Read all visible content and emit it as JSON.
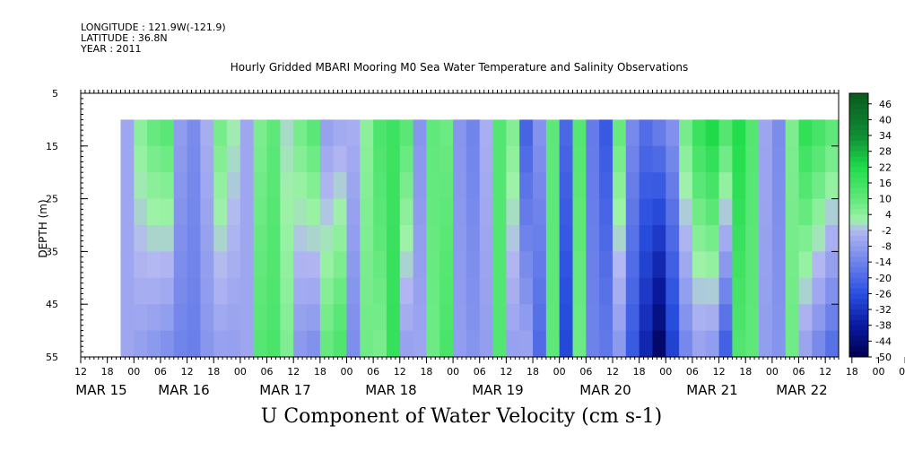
{
  "header": {
    "longitude": "LONGITUDE : 121.9W(-121.9)",
    "latitude": "LATITUDE : 36.8N",
    "year": "YEAR : 2011"
  },
  "chart_data": {
    "type": "heatmap",
    "title": "Hourly Gridded MBARI Mooring M0 Sea Water Temperature and Salinity Observations",
    "ylabel": "DEPTH (m)",
    "xlabel": "U Component of Water Velocity (cm s-1)",
    "y_reversed": true,
    "ylim": [
      5,
      55
    ],
    "y_ticks": [
      "5",
      "15",
      "25",
      "35",
      "45",
      "55"
    ],
    "xlim": [
      "2011-03-15 12:00",
      "2011-03-22 15:00"
    ],
    "x_hour_ticks": [
      "12",
      "18",
      "00",
      "06",
      "12",
      "18",
      "00",
      "06",
      "12",
      "18",
      "00",
      "06",
      "12",
      "18",
      "00",
      "06",
      "12",
      "18",
      "00",
      "06",
      "12",
      "18",
      "00",
      "06",
      "12",
      "18",
      "00",
      "06",
      "12",
      "18",
      "00",
      "06",
      "12"
    ],
    "x_date_labels": [
      "MAR 15",
      "MAR 16",
      "MAR 17",
      "MAR 18",
      "MAR 19",
      "MAR 20",
      "MAR 21",
      "MAR 22"
    ],
    "data_range": {
      "depth": [
        10,
        55
      ],
      "time_start": "2011-03-15 21:00",
      "time_end": "2011-03-22 15:00"
    },
    "colorbar": {
      "labels": [
        "46",
        "40",
        "34",
        "28",
        "22",
        "16",
        "10",
        "4",
        "-2",
        "-8",
        "-14",
        "-20",
        "-26",
        "-32",
        "-38",
        "-44",
        "-50"
      ],
      "min": -50,
      "max": 50,
      "colors": {
        "dark_blue": "#000066",
        "blue": "#2a4fe0",
        "light_blue": "#b4b8f2",
        "light_green": "#9ef2a8",
        "green": "#1fdc4a",
        "dark_green": "#0a5a1e"
      }
    },
    "columns_u_cm_s": [
      {
        "time": "2011-03-15 21:00",
        "top": -6,
        "bottom": -6
      },
      {
        "time": "2011-03-16 00:00",
        "top": 5,
        "bottom": -8
      },
      {
        "time": "2011-03-16 03:00",
        "top": 10,
        "bottom": -10
      },
      {
        "time": "2011-03-16 06:00",
        "top": 12,
        "bottom": -12
      },
      {
        "time": "2011-03-16 09:00",
        "top": -8,
        "bottom": -14
      },
      {
        "time": "2011-03-16 12:00",
        "top": -12,
        "bottom": -15
      },
      {
        "time": "2011-03-16 15:00",
        "top": -4,
        "bottom": -10
      },
      {
        "time": "2011-03-16 18:00",
        "top": 8,
        "bottom": -8
      },
      {
        "time": "2011-03-16 21:00",
        "top": 2,
        "bottom": -8
      },
      {
        "time": "2011-03-17 00:00",
        "top": -6,
        "bottom": -6
      },
      {
        "time": "2011-03-17 03:00",
        "top": 6,
        "bottom": 12
      },
      {
        "time": "2011-03-17 06:00",
        "top": 10,
        "bottom": 14
      },
      {
        "time": "2011-03-17 09:00",
        "top": 0,
        "bottom": 6
      },
      {
        "time": "2011-03-17 12:00",
        "top": 8,
        "bottom": -10
      },
      {
        "time": "2011-03-17 15:00",
        "top": 12,
        "bottom": -12
      },
      {
        "time": "2011-03-17 18:00",
        "top": -8,
        "bottom": 10
      },
      {
        "time": "2011-03-17 21:00",
        "top": -6,
        "bottom": 14
      },
      {
        "time": "2011-03-18 00:00",
        "top": -4,
        "bottom": -12
      },
      {
        "time": "2011-03-18 03:00",
        "top": 4,
        "bottom": 8
      },
      {
        "time": "2011-03-18 06:00",
        "top": 14,
        "bottom": 6
      },
      {
        "time": "2011-03-18 09:00",
        "top": 16,
        "bottom": 18
      },
      {
        "time": "2011-03-18 12:00",
        "top": 12,
        "bottom": -8
      },
      {
        "time": "2011-03-18 15:00",
        "top": -10,
        "bottom": -6
      },
      {
        "time": "2011-03-18 18:00",
        "top": 10,
        "bottom": 8
      },
      {
        "time": "2011-03-18 21:00",
        "top": 8,
        "bottom": 14
      },
      {
        "time": "2011-03-19 00:00",
        "top": -10,
        "bottom": -8
      },
      {
        "time": "2011-03-19 03:00",
        "top": -14,
        "bottom": -10
      },
      {
        "time": "2011-03-19 06:00",
        "top": -4,
        "bottom": -8
      },
      {
        "time": "2011-03-19 09:00",
        "top": 12,
        "bottom": 12
      },
      {
        "time": "2011-03-19 12:00",
        "top": 6,
        "bottom": -8
      },
      {
        "time": "2011-03-19 15:00",
        "top": -22,
        "bottom": -6
      },
      {
        "time": "2011-03-19 18:00",
        "top": -10,
        "bottom": -20
      },
      {
        "time": "2011-03-19 21:00",
        "top": 10,
        "bottom": 10
      },
      {
        "time": "2011-03-20 00:00",
        "top": -20,
        "bottom": -28
      },
      {
        "time": "2011-03-20 03:00",
        "top": 12,
        "bottom": 8
      },
      {
        "time": "2011-03-20 06:00",
        "top": -16,
        "bottom": -14
      },
      {
        "time": "2011-03-20 09:00",
        "top": -24,
        "bottom": -16
      },
      {
        "time": "2011-03-20 12:00",
        "top": 10,
        "bottom": -10
      },
      {
        "time": "2011-03-20 15:00",
        "top": -12,
        "bottom": -24
      },
      {
        "time": "2011-03-20 18:00",
        "top": -18,
        "bottom": -36
      },
      {
        "time": "2011-03-20 21:00",
        "top": -14,
        "bottom": -48
      },
      {
        "time": "2011-03-21 00:00",
        "top": -10,
        "bottom": -30
      },
      {
        "time": "2011-03-21 03:00",
        "top": 8,
        "bottom": -14
      },
      {
        "time": "2011-03-21 06:00",
        "top": 18,
        "bottom": -8
      },
      {
        "time": "2011-03-21 09:00",
        "top": 24,
        "bottom": -10
      },
      {
        "time": "2011-03-21 12:00",
        "top": 14,
        "bottom": -24
      },
      {
        "time": "2011-03-21 15:00",
        "top": 22,
        "bottom": 12
      },
      {
        "time": "2011-03-21 18:00",
        "top": 12,
        "bottom": 10
      },
      {
        "time": "2011-03-21 21:00",
        "top": -6,
        "bottom": -8
      },
      {
        "time": "2011-03-22 00:00",
        "top": -12,
        "bottom": -10
      },
      {
        "time": "2011-03-22 03:00",
        "top": 6,
        "bottom": 8
      },
      {
        "time": "2011-03-22 06:00",
        "top": 20,
        "bottom": -8
      },
      {
        "time": "2011-03-22 09:00",
        "top": 16,
        "bottom": -14
      },
      {
        "time": "2011-03-22 12:00",
        "top": 12,
        "bottom": -20
      },
      {
        "time": "2011-03-22 15:00",
        "top": 8,
        "bottom": -8
      }
    ]
  }
}
